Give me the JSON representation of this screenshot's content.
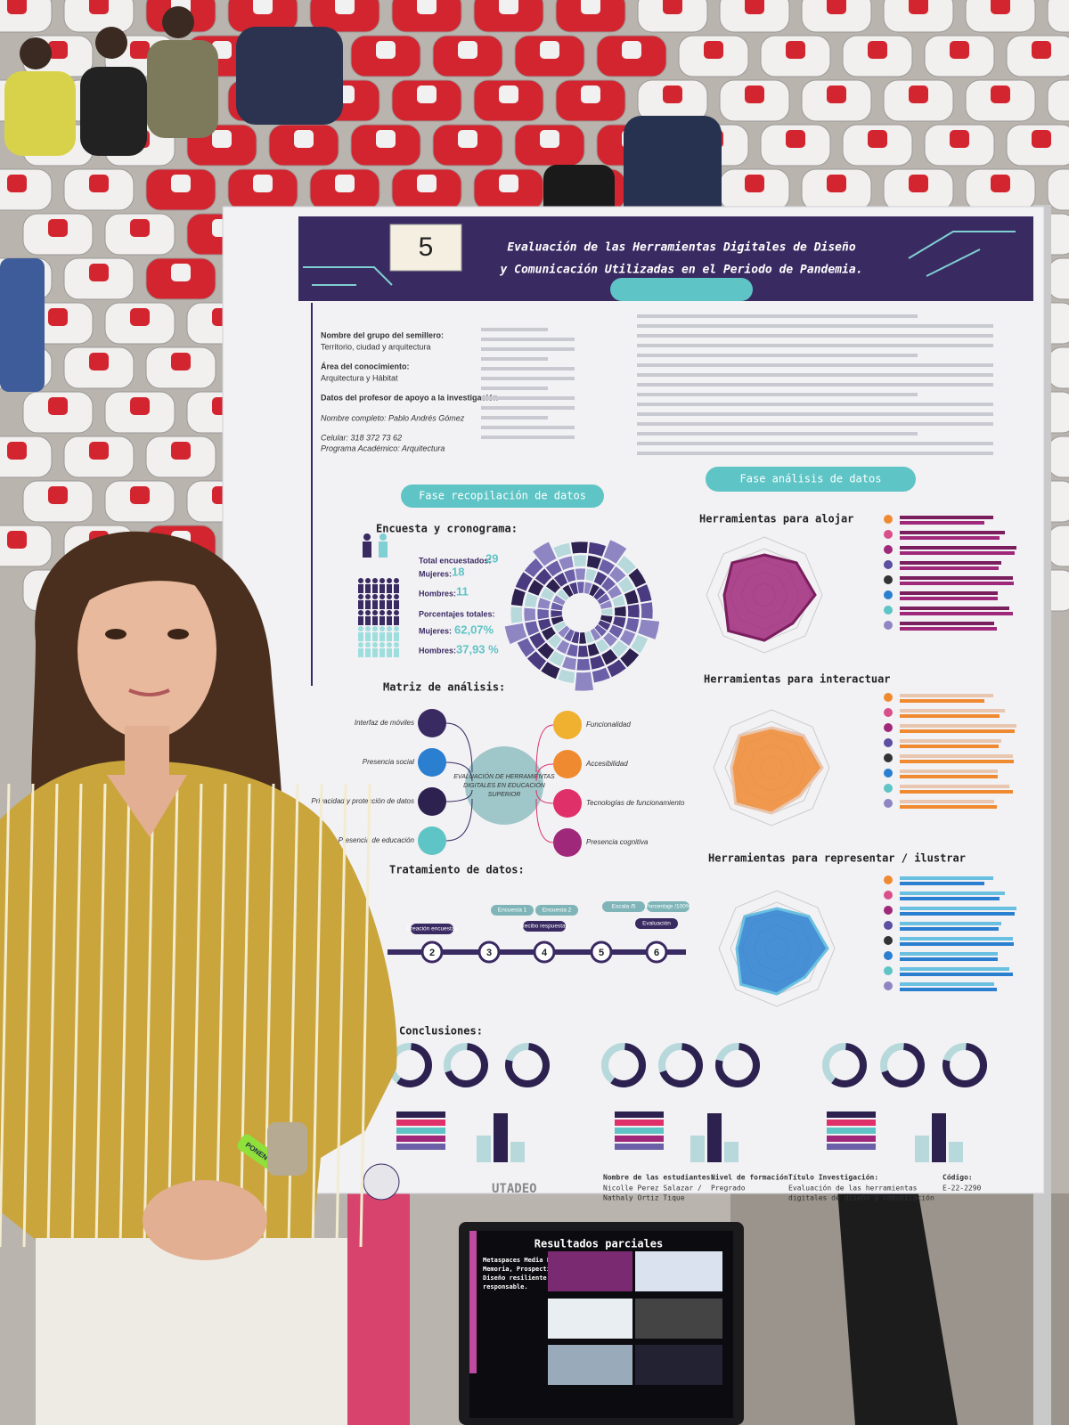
{
  "poster": {
    "number": "5",
    "title": [
      "Evaluación de las Herramientas Digitales de Diseño",
      "y Comunicación Utilizadas en el Periodo de Pandemia."
    ],
    "info": [
      "Nombre del grupo del semillero:",
      "Territorio, ciudad y arquitectura",
      "Área del conocimiento:",
      "Arquitectura y Hábitat",
      "Datos del profesor de apoyo a la investigación",
      "Nombre completo: Pablo Andrés Gómez",
      "Celular: 318 372 73 62",
      "Programa Académico: Arquitectura"
    ],
    "phases": {
      "collection": "Fase recopilación de datos",
      "analysis": "Fase análisis de datos"
    },
    "survey": {
      "heading": "Encuesta y cronograma:",
      "total_label": "Total encuestados:",
      "total": "29",
      "women_label": "Mujeres:",
      "women": "18",
      "men_label": "Hombres:",
      "men": "11",
      "percent_heading": "Porcentajes totales:",
      "women_pct_label": "Mujeres:",
      "women_pct": "62,07%",
      "men_pct_label": "Hombres:",
      "men_pct": "37,93 %"
    },
    "tools": [
      "Herramientas para alojar",
      "Herramientas para interactuar",
      "Herramientas para representar / ilustrar"
    ],
    "matrix": {
      "heading": "Matriz de análisis:",
      "center": [
        "EVALUACIÓN DE HERRAMIENTAS",
        "DIGITALES EN EDUCACIÓN",
        "SUPERIOR"
      ],
      "left": [
        "Interfaz de móviles",
        "Presencia social",
        "Privacidad y protección de datos",
        "Presencia de educación"
      ],
      "right": [
        "Funcionalidad",
        "Accesibilidad",
        "Tecnologías de funcionamiento",
        "Presencia cognitiva"
      ]
    },
    "treatment": {
      "heading": "Tratamiento de datos:",
      "steps": [
        "2",
        "3",
        "4",
        "5",
        "6"
      ],
      "labels": [
        "Creación encuestas",
        "Recibo respuestas",
        "Evaluación",
        "Encuesta 1",
        "Encuesta 2",
        "Escala /5",
        "Porcentaje /100%"
      ]
    },
    "conclusions": "Conclusiones:",
    "footer": {
      "students_label": "Nombre de las estudiantes:",
      "students": [
        "Nicolle Perez Salazar /",
        "Nathaly Ortiz Tique"
      ],
      "level_label": "Nivel de formación:",
      "level": "Pregrado",
      "research_label": "Título Investigación:",
      "research": [
        "Evaluación de las herramientas",
        "digitales de diseño y comunicación"
      ],
      "code_label": "Código:",
      "code": "E-22-2290",
      "logo": "UTADEO"
    }
  },
  "laptop": {
    "title": "Resultados parciales",
    "subtitle": [
      "Metaspaces Media Lab.",
      "Memoria, Prospectiva,",
      "Diseño resiliente y",
      "responsable."
    ]
  },
  "wristband": "PONENTE"
}
